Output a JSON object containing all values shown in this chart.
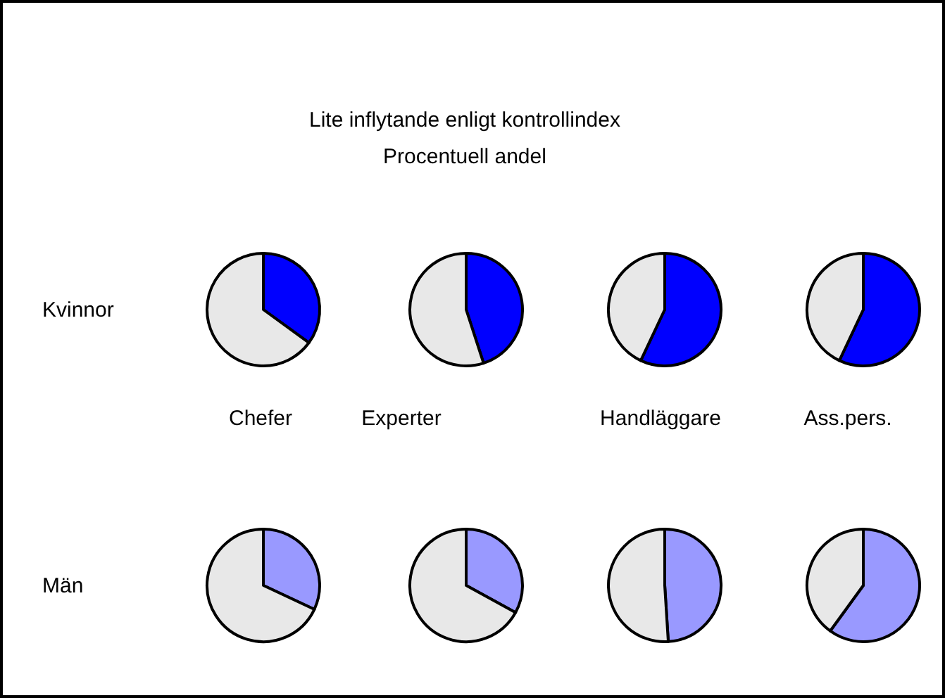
{
  "chart_data": [
    {
      "type": "pie",
      "ylabel": "Kvinnor",
      "xlabel": "Chefer",
      "categories": [
        null,
        null
      ],
      "values": [
        35,
        65
      ],
      "colors": [
        "#0000ff",
        "#e8e8e8"
      ]
    },
    {
      "type": "pie",
      "title": "Lite inflytande enligt kontrollindex",
      "subtitle": "Procentuell andel",
      "xlabel": "Experter",
      "categories": [
        null,
        null
      ],
      "values": [
        45,
        55
      ],
      "colors": [
        "#0000ff",
        "#e8e8e8"
      ]
    },
    {
      "type": "pie",
      "xlabel": "Handläggare",
      "categories": [
        null,
        null
      ],
      "values": [
        57,
        43
      ],
      "colors": [
        "#0000ff",
        "#e8e8e8"
      ]
    },
    {
      "type": "pie",
      "xlabel": "Ass.pers.",
      "categories": [
        null,
        null
      ],
      "values": [
        57,
        43
      ],
      "colors": [
        "#0000ff",
        "#e8e8e8"
      ]
    },
    {
      "type": "pie",
      "ylabel": "Män",
      "categories": [
        null,
        null
      ],
      "values": [
        32,
        68
      ],
      "colors": [
        "#9999ff",
        "#e8e8e8"
      ]
    },
    {
      "type": "pie",
      "categories": [
        null,
        null
      ],
      "values": [
        33,
        67
      ],
      "colors": [
        "#9999ff",
        "#e8e8e8"
      ]
    },
    {
      "type": "pie",
      "categories": [
        null,
        null
      ],
      "values": [
        49,
        51
      ],
      "colors": [
        "#9999ff",
        "#e8e8e8"
      ]
    },
    {
      "type": "pie",
      "categories": [
        null,
        null
      ],
      "values": [
        60,
        40
      ],
      "colors": [
        "#9999ff",
        "#e8e8e8"
      ]
    }
  ]
}
